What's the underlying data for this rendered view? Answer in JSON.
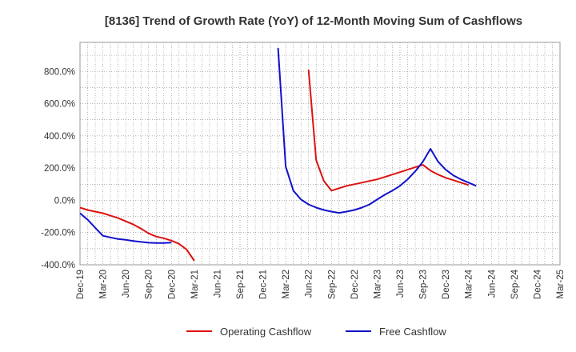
{
  "chart_data": {
    "type": "line",
    "title": "[8136]  Trend of Growth Rate (YoY) of 12-Month Moving Sum of Cashflows",
    "x_ticks": [
      "Dec-19",
      "Mar-20",
      "Jun-20",
      "Sep-20",
      "Dec-20",
      "Mar-21",
      "Jun-21",
      "Sep-21",
      "Dec-21",
      "Mar-22",
      "Jun-22",
      "Sep-22",
      "Dec-22",
      "Mar-23",
      "Jun-23",
      "Sep-23",
      "Dec-23",
      "Mar-24",
      "Jun-24",
      "Sep-24",
      "Dec-24",
      "Mar-25"
    ],
    "y_ticks": [
      "-400.0%",
      "-200.0%",
      "0.0%",
      "200.0%",
      "400.0%",
      "600.0%",
      "800.0%"
    ],
    "ylim": [
      -400,
      980
    ],
    "grid": true,
    "legend_position": "bottom",
    "series": [
      {
        "name": "Operating Cashflow",
        "color": "#dd1111",
        "points": [
          [
            "Dec-19",
            -45
          ],
          [
            "Jan-20",
            -60
          ],
          [
            "Feb-20",
            -70
          ],
          [
            "Mar-20",
            -80
          ],
          [
            "Apr-20",
            -95
          ],
          [
            "May-20",
            -110
          ],
          [
            "Jun-20",
            -130
          ],
          [
            "Jul-20",
            -150
          ],
          [
            "Aug-20",
            -175
          ],
          [
            "Sep-20",
            -205
          ],
          [
            "Oct-20",
            -225
          ],
          [
            "Nov-20",
            -235
          ],
          [
            "Dec-20",
            -250
          ],
          [
            "Jan-21",
            -270
          ],
          [
            "Feb-21",
            -305
          ],
          [
            "Mar-21",
            -375
          ],
          [
            "Jun-22",
            810
          ],
          [
            "Jul-22",
            250
          ],
          [
            "Aug-22",
            120
          ],
          [
            "Sep-22",
            60
          ],
          [
            "Oct-22",
            75
          ],
          [
            "Nov-22",
            90
          ],
          [
            "Dec-22",
            100
          ],
          [
            "Jan-23",
            110
          ],
          [
            "Feb-23",
            120
          ],
          [
            "Mar-23",
            130
          ],
          [
            "Apr-23",
            145
          ],
          [
            "May-23",
            160
          ],
          [
            "Jun-23",
            175
          ],
          [
            "Jul-23",
            190
          ],
          [
            "Aug-23",
            205
          ],
          [
            "Sep-23",
            220
          ],
          [
            "Oct-23",
            185
          ],
          [
            "Nov-23",
            160
          ],
          [
            "Dec-23",
            140
          ],
          [
            "Jan-24",
            125
          ],
          [
            "Feb-24",
            110
          ],
          [
            "Mar-24",
            95
          ]
        ]
      },
      {
        "name": "Free Cashflow",
        "color": "#1111cc",
        "points": [
          [
            "Dec-19",
            -80
          ],
          [
            "Jan-20",
            -120
          ],
          [
            "Feb-20",
            -170
          ],
          [
            "Mar-20",
            -220
          ],
          [
            "Apr-20",
            -230
          ],
          [
            "May-20",
            -240
          ],
          [
            "Jun-20",
            -245
          ],
          [
            "Jul-20",
            -252
          ],
          [
            "Aug-20",
            -258
          ],
          [
            "Sep-20",
            -263
          ],
          [
            "Oct-20",
            -265
          ],
          [
            "Nov-20",
            -265
          ],
          [
            "Dec-20",
            -262
          ],
          [
            "Feb-22",
            945
          ],
          [
            "Mar-22",
            210
          ],
          [
            "Apr-22",
            60
          ],
          [
            "May-22",
            5
          ],
          [
            "Jun-22",
            -25
          ],
          [
            "Jul-22",
            -45
          ],
          [
            "Aug-22",
            -60
          ],
          [
            "Sep-22",
            -70
          ],
          [
            "Oct-22",
            -78
          ],
          [
            "Nov-22",
            -70
          ],
          [
            "Dec-22",
            -60
          ],
          [
            "Jan-23",
            -45
          ],
          [
            "Feb-23",
            -25
          ],
          [
            "Mar-23",
            5
          ],
          [
            "Apr-23",
            35
          ],
          [
            "May-23",
            60
          ],
          [
            "Jun-23",
            90
          ],
          [
            "Jul-23",
            130
          ],
          [
            "Aug-23",
            180
          ],
          [
            "Sep-23",
            240
          ],
          [
            "Oct-23",
            320
          ],
          [
            "Nov-23",
            240
          ],
          [
            "Dec-23",
            190
          ],
          [
            "Jan-24",
            155
          ],
          [
            "Feb-24",
            130
          ],
          [
            "Mar-24",
            110
          ],
          [
            "Apr-24",
            90
          ]
        ]
      }
    ]
  }
}
